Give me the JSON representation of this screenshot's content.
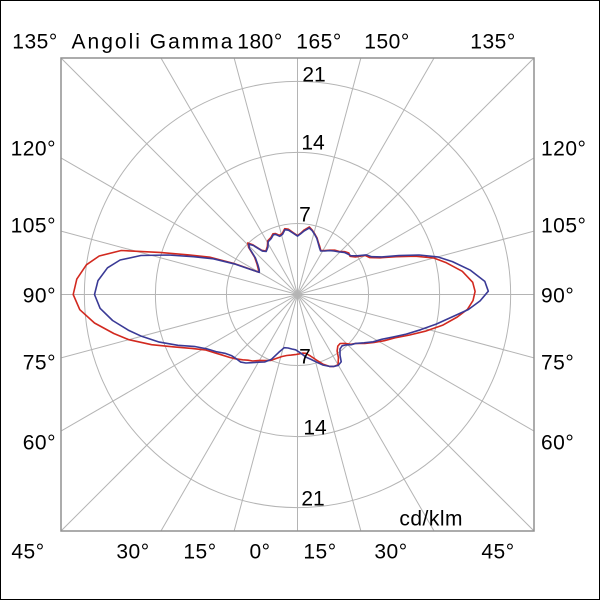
{
  "title": "Angoli Gamma",
  "unit_label": "cd/klm",
  "colors": {
    "red_curve": "#d2291f",
    "blue_curve": "#3a3a96",
    "grid": "#b4b4b4",
    "plot_border": "#919191",
    "text": "#000000",
    "background": "#ffffff"
  },
  "labels": {
    "top": [
      "135°",
      "180°",
      "165°",
      "150°",
      "135°"
    ],
    "left": [
      "120°",
      "105°",
      "90°",
      "75°",
      "60°"
    ],
    "right": [
      "120°",
      "105°",
      "90°",
      "75°",
      "60°"
    ],
    "bottom": [
      "45°",
      "30°",
      "15°",
      "0°",
      "15°",
      "30°",
      "45°"
    ],
    "radius_top": [
      "21",
      "14",
      "7"
    ],
    "radius_bottom": [
      "7",
      "14",
      "21"
    ]
  },
  "chart_data": {
    "type": "line",
    "subtype": "polar-photometric",
    "title": "Angoli Gamma",
    "radial_unit": "cd/klm",
    "radial_ticks": [
      7,
      14,
      21
    ],
    "radial_max": 23.3,
    "angle_grid_step_deg": 15,
    "angle_convention": "gamma=0 points down (nadir), 180 points up; negative=left half, positive=right half",
    "angle_labels_deg": [
      0,
      15,
      30,
      45,
      60,
      75,
      90,
      105,
      120,
      135,
      150,
      165,
      180
    ],
    "grid": true,
    "legend": false,
    "series": [
      {
        "name": "red",
        "color": "#d2291f",
        "points": [
          [
            -180,
            5.8
          ],
          [
            -176,
            6.1
          ],
          [
            -172,
            6.5
          ],
          [
            -169,
            6.6
          ],
          [
            -166,
            6.2
          ],
          [
            -163,
            6.1
          ],
          [
            -160,
            6.4
          ],
          [
            -158,
            6.45
          ],
          [
            -155,
            6.2
          ],
          [
            -151,
            6.05
          ],
          [
            -148,
            5.6
          ],
          [
            -144,
            5.3
          ],
          [
            -141,
            5.6
          ],
          [
            -138,
            6.6
          ],
          [
            -136,
            7.05
          ],
          [
            -134,
            6.7
          ],
          [
            -131,
            5.6
          ],
          [
            -127,
            5.0
          ],
          [
            -123,
            4.6
          ],
          [
            -120,
            4.4
          ],
          [
            -118,
            5.4
          ],
          [
            -116,
            7.0
          ],
          [
            -113,
            9.4
          ],
          [
            -110,
            11.4
          ],
          [
            -107,
            14.2
          ],
          [
            -104,
            17.9
          ],
          [
            -101,
            19.9
          ],
          [
            -98,
            21.0
          ],
          [
            -94,
            21.8
          ],
          [
            -90,
            22.1
          ],
          [
            -86,
            21.5
          ],
          [
            -82,
            20.2
          ],
          [
            -78,
            18.5
          ],
          [
            -75,
            17.2
          ],
          [
            -71,
            15.2
          ],
          [
            -67,
            13.2
          ],
          [
            -63,
            11.7
          ],
          [
            -59,
            10.6
          ],
          [
            -55,
            10.0
          ],
          [
            -51,
            9.5
          ],
          [
            -47,
            9.1
          ],
          [
            -44,
            8.8
          ],
          [
            -40,
            8.4
          ],
          [
            -37,
            8.1
          ],
          [
            -34,
            7.9
          ],
          [
            -30,
            7.5
          ],
          [
            -26,
            7.25
          ],
          [
            -22,
            7.0
          ],
          [
            -18,
            6.6
          ],
          [
            -14,
            6.3
          ],
          [
            -10,
            6.1
          ],
          [
            -6,
            6.0
          ],
          [
            -2,
            5.92
          ],
          [
            2,
            5.85
          ],
          [
            5,
            5.8
          ],
          [
            8,
            5.85
          ],
          [
            12,
            6.2
          ],
          [
            16,
            6.7
          ],
          [
            20,
            7.3
          ],
          [
            24,
            7.75
          ],
          [
            27,
            7.95
          ],
          [
            30,
            8.0
          ],
          [
            33,
            7.4
          ],
          [
            35,
            6.8
          ],
          [
            38,
            6.45
          ],
          [
            41,
            6.4
          ],
          [
            44,
            6.7
          ],
          [
            47,
            7.2
          ],
          [
            50,
            7.5
          ],
          [
            54,
            8.2
          ],
          [
            58,
            8.9
          ],
          [
            62,
            9.7
          ],
          [
            66,
            10.5
          ],
          [
            70,
            11.7
          ],
          [
            74,
            13.1
          ],
          [
            78,
            14.6
          ],
          [
            82,
            15.9
          ],
          [
            85,
            16.8
          ],
          [
            88,
            17.3
          ],
          [
            91,
            17.5
          ],
          [
            94,
            17.3
          ],
          [
            98,
            16.4
          ],
          [
            102,
            15.0
          ],
          [
            105,
            13.9
          ],
          [
            108,
            12.2
          ],
          [
            111,
            10.4
          ],
          [
            114,
            8.9
          ],
          [
            117,
            8.0
          ],
          [
            120,
            7.7
          ],
          [
            123,
            6.8
          ],
          [
            126,
            6.4
          ],
          [
            129,
            6.5
          ],
          [
            132,
            6.3
          ],
          [
            136,
            5.9
          ],
          [
            140,
            5.7
          ],
          [
            144,
            5.4
          ],
          [
            148,
            5.1
          ],
          [
            152,
            4.9
          ],
          [
            155,
            5.2
          ],
          [
            158,
            5.5
          ],
          [
            161,
            5.9
          ],
          [
            164,
            6.2
          ],
          [
            167,
            6.5
          ],
          [
            170,
            6.75
          ],
          [
            174,
            6.4
          ],
          [
            177,
            6.05
          ],
          [
            180,
            5.8
          ]
        ]
      },
      {
        "name": "blue",
        "color": "#3a3a96",
        "points": [
          [
            -180,
            5.75
          ],
          [
            -176,
            6.05
          ],
          [
            -172,
            6.4
          ],
          [
            -169,
            6.5
          ],
          [
            -166,
            6.1
          ],
          [
            -163,
            6.0
          ],
          [
            -160,
            6.3
          ],
          [
            -158,
            6.35
          ],
          [
            -155,
            6.1
          ],
          [
            -151,
            5.95
          ],
          [
            -148,
            5.5
          ],
          [
            -144,
            5.25
          ],
          [
            -141,
            5.5
          ],
          [
            -138,
            6.5
          ],
          [
            -136,
            6.9
          ],
          [
            -134,
            6.6
          ],
          [
            -131,
            5.5
          ],
          [
            -127,
            4.9
          ],
          [
            -123,
            4.5
          ],
          [
            -120,
            4.35
          ],
          [
            -118,
            5.3
          ],
          [
            -116,
            6.8
          ],
          [
            -113,
            9.0
          ],
          [
            -110,
            10.9
          ],
          [
            -107,
            13.3
          ],
          [
            -104,
            15.9
          ],
          [
            -101,
            17.8
          ],
          [
            -98,
            18.9
          ],
          [
            -94,
            19.7
          ],
          [
            -90,
            20.0
          ],
          [
            -86,
            19.5
          ],
          [
            -82,
            18.4
          ],
          [
            -78,
            17.0
          ],
          [
            -75,
            15.9
          ],
          [
            -71,
            14.4
          ],
          [
            -67,
            12.8
          ],
          [
            -63,
            11.3
          ],
          [
            -59,
            10.4
          ],
          [
            -55,
            9.8
          ],
          [
            -51,
            9.2
          ],
          [
            -47,
            8.85
          ],
          [
            -44,
            8.75
          ],
          [
            -40,
            8.7
          ],
          [
            -37,
            8.45
          ],
          [
            -34,
            8.1
          ],
          [
            -30,
            7.7
          ],
          [
            -26,
            7.4
          ],
          [
            -22,
            6.9
          ],
          [
            -18,
            6.0
          ],
          [
            -14,
            5.4
          ],
          [
            -10,
            5.35
          ],
          [
            -6,
            5.4
          ],
          [
            -2,
            5.45
          ],
          [
            2,
            5.7
          ],
          [
            5,
            5.95
          ],
          [
            8,
            6.25
          ],
          [
            12,
            6.55
          ],
          [
            16,
            6.95
          ],
          [
            20,
            7.4
          ],
          [
            24,
            7.75
          ],
          [
            27,
            7.95
          ],
          [
            30,
            8.05
          ],
          [
            33,
            7.9
          ],
          [
            35,
            7.3
          ],
          [
            38,
            6.8
          ],
          [
            41,
            6.7
          ],
          [
            44,
            6.9
          ],
          [
            47,
            7.25
          ],
          [
            50,
            7.5
          ],
          [
            54,
            8.1
          ],
          [
            58,
            8.8
          ],
          [
            62,
            9.4
          ],
          [
            66,
            10.3
          ],
          [
            70,
            11.4
          ],
          [
            74,
            12.6
          ],
          [
            78,
            14.0
          ],
          [
            82,
            15.5
          ],
          [
            85,
            16.9
          ],
          [
            88,
            18.0
          ],
          [
            91,
            18.8
          ],
          [
            94,
            18.5
          ],
          [
            98,
            17.2
          ],
          [
            102,
            15.6
          ],
          [
            105,
            14.3
          ],
          [
            108,
            12.6
          ],
          [
            111,
            10.7
          ],
          [
            114,
            9.1
          ],
          [
            117,
            8.2
          ],
          [
            120,
            7.8
          ],
          [
            123,
            7.0
          ],
          [
            126,
            6.5
          ],
          [
            129,
            6.35
          ],
          [
            132,
            6.2
          ],
          [
            136,
            5.85
          ],
          [
            140,
            5.6
          ],
          [
            144,
            5.35
          ],
          [
            148,
            5.05
          ],
          [
            152,
            4.85
          ],
          [
            155,
            5.1
          ],
          [
            158,
            5.45
          ],
          [
            161,
            5.85
          ],
          [
            164,
            6.15
          ],
          [
            167,
            6.45
          ],
          [
            170,
            6.65
          ],
          [
            174,
            6.3
          ],
          [
            177,
            6.0
          ],
          [
            180,
            5.75
          ]
        ]
      }
    ]
  }
}
